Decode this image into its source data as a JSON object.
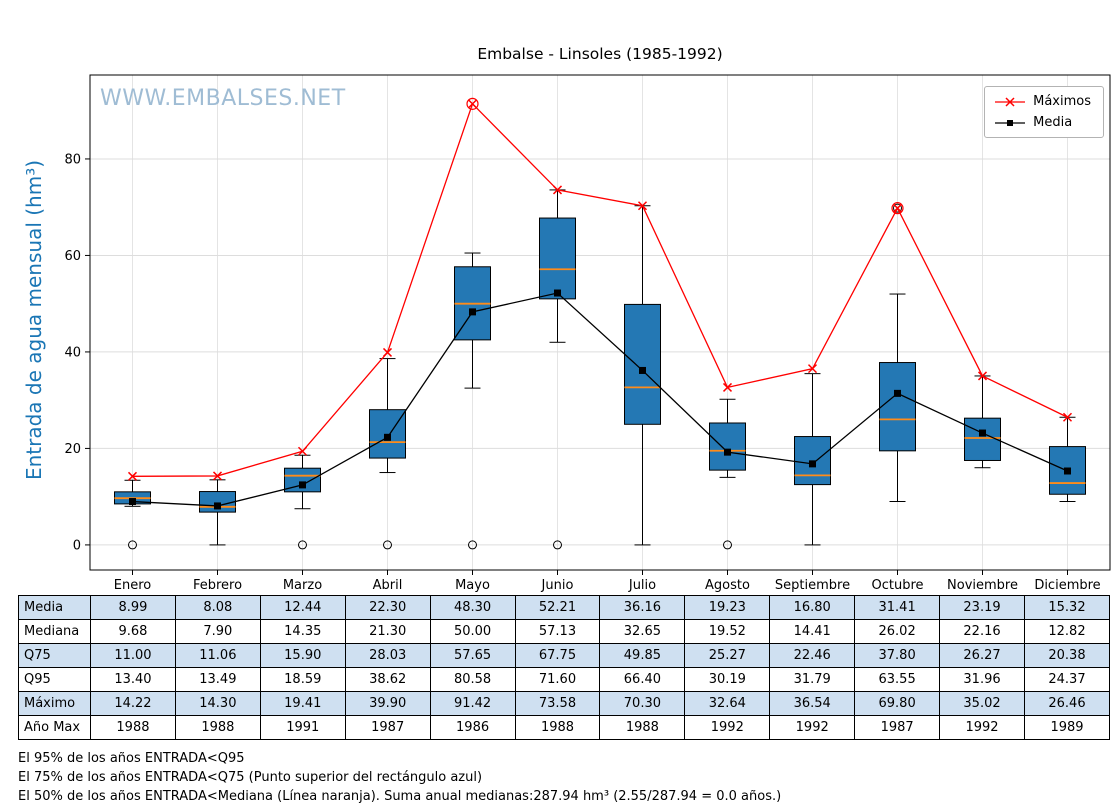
{
  "title": "Embalse - Linsoles (1985-1992)",
  "watermark": "WWW.EMBALSES.NET",
  "legend": {
    "maximos": "Máximos",
    "media": "Media"
  },
  "chart_data": {
    "type": "boxplot",
    "title": "Embalse - Linsoles (1985-1992)",
    "ylabel": "Entrada de agua mensual (hm³)",
    "ylim": [
      -5.2,
      97.4
    ],
    "yticks": [
      0,
      20,
      40,
      60,
      80
    ],
    "grid": true,
    "legend_position": "upper right",
    "categories": [
      "Enero",
      "Febrero",
      "Marzo",
      "Abril",
      "Mayo",
      "Junio",
      "Julio",
      "Agosto",
      "Septiembre",
      "Octubre",
      "Noviembre",
      "Diciembre"
    ],
    "boxes": [
      {
        "whisker_low": 8.0,
        "q1": 8.5,
        "median": 9.68,
        "q3": 11.0,
        "whisker_high": 13.4,
        "outliers": [
          0
        ]
      },
      {
        "whisker_low": 0,
        "q1": 6.8,
        "median": 7.9,
        "q3": 11.06,
        "whisker_high": 13.49,
        "outliers": []
      },
      {
        "whisker_low": 7.5,
        "q1": 11.0,
        "median": 14.35,
        "q3": 15.9,
        "whisker_high": 18.59,
        "outliers": [
          0
        ]
      },
      {
        "whisker_low": 15.0,
        "q1": 18.0,
        "median": 21.3,
        "q3": 28.03,
        "whisker_high": 38.62,
        "outliers": [
          0
        ]
      },
      {
        "whisker_low": 32.5,
        "q1": 42.5,
        "median": 50.0,
        "q3": 57.65,
        "whisker_high": 60.5,
        "outliers": [
          0
        ]
      },
      {
        "whisker_low": 42.0,
        "q1": 51.0,
        "median": 57.13,
        "q3": 67.75,
        "whisker_high": 73.58,
        "outliers": [
          0
        ]
      },
      {
        "whisker_low": 0,
        "q1": 25.0,
        "median": 32.65,
        "q3": 49.85,
        "whisker_high": 70.3,
        "outliers": []
      },
      {
        "whisker_low": 14.0,
        "q1": 15.5,
        "median": 19.52,
        "q3": 25.27,
        "whisker_high": 30.19,
        "outliers": [
          0
        ]
      },
      {
        "whisker_low": 0,
        "q1": 12.5,
        "median": 14.41,
        "q3": 22.46,
        "whisker_high": 35.5,
        "outliers": []
      },
      {
        "whisker_low": 9.0,
        "q1": 19.5,
        "median": 26.02,
        "q3": 37.8,
        "whisker_high": 52.0,
        "outliers": [
          69.8
        ]
      },
      {
        "whisker_low": 16.0,
        "q1": 17.5,
        "median": 22.16,
        "q3": 26.27,
        "whisker_high": 35.02,
        "outliers": []
      },
      {
        "whisker_low": 9.0,
        "q1": 10.5,
        "median": 12.82,
        "q3": 20.38,
        "whisker_high": 26.46,
        "outliers": []
      }
    ],
    "series": [
      {
        "name": "Máximos",
        "marker": "x",
        "color": "#ff0000",
        "values": [
          14.22,
          14.3,
          19.41,
          39.9,
          91.42,
          73.58,
          70.3,
          32.64,
          36.54,
          69.8,
          35.02,
          26.46
        ],
        "circled_indices": [
          4,
          9
        ]
      },
      {
        "name": "Media",
        "marker": "square",
        "color": "#000000",
        "values": [
          8.99,
          8.08,
          12.44,
          22.3,
          48.3,
          52.21,
          36.16,
          19.23,
          16.8,
          31.41,
          23.19,
          15.32
        ]
      }
    ],
    "colors": {
      "box_fill": "#2478b4",
      "box_edge": "#000000",
      "median_line": "#ff8c1a",
      "grid": "#dddddd",
      "maximos_line": "#ff0000",
      "media_line": "#000000",
      "ylabel_text": "#1a76b5",
      "watermark_text": "#9fbcd4",
      "table_alt_row": "#cfe0f1"
    }
  },
  "table": {
    "columns": [
      "Enero",
      "Febrero",
      "Marzo",
      "Abril",
      "Mayo",
      "Junio",
      "Julio",
      "Agosto",
      "Septiembre",
      "Octubre",
      "Noviembre",
      "Diciembre"
    ],
    "rows": [
      {
        "label": "Media",
        "values": [
          "8.99",
          "8.08",
          "12.44",
          "22.30",
          "48.30",
          "52.21",
          "36.16",
          "19.23",
          "16.80",
          "31.41",
          "23.19",
          "15.32"
        ]
      },
      {
        "label": "Mediana",
        "values": [
          "9.68",
          "7.90",
          "14.35",
          "21.30",
          "50.00",
          "57.13",
          "32.65",
          "19.52",
          "14.41",
          "26.02",
          "22.16",
          "12.82"
        ]
      },
      {
        "label": "Q75",
        "values": [
          "11.00",
          "11.06",
          "15.90",
          "28.03",
          "57.65",
          "67.75",
          "49.85",
          "25.27",
          "22.46",
          "37.80",
          "26.27",
          "20.38"
        ]
      },
      {
        "label": "Q95",
        "values": [
          "13.40",
          "13.49",
          "18.59",
          "38.62",
          "80.58",
          "71.60",
          "66.40",
          "30.19",
          "31.79",
          "63.55",
          "31.96",
          "24.37"
        ]
      },
      {
        "label": "Máximo",
        "values": [
          "14.22",
          "14.30",
          "19.41",
          "39.90",
          "91.42",
          "73.58",
          "70.30",
          "32.64",
          "36.54",
          "69.80",
          "35.02",
          "26.46"
        ]
      },
      {
        "label": "Año Max",
        "values": [
          "1988",
          "1988",
          "1991",
          "1987",
          "1986",
          "1988",
          "1988",
          "1992",
          "1992",
          "1987",
          "1992",
          "1989"
        ]
      }
    ]
  },
  "footnotes": [
    "El 95% de los años ENTRADA<Q95",
    "El 75% de los años ENTRADA<Q75 (Punto superior del rectángulo azul)",
    "El 50% de los años ENTRADA<Mediana (Línea naranja). Suma anual medianas:287.94 hm³ (2.55/287.94 = 0.0 años.)"
  ]
}
